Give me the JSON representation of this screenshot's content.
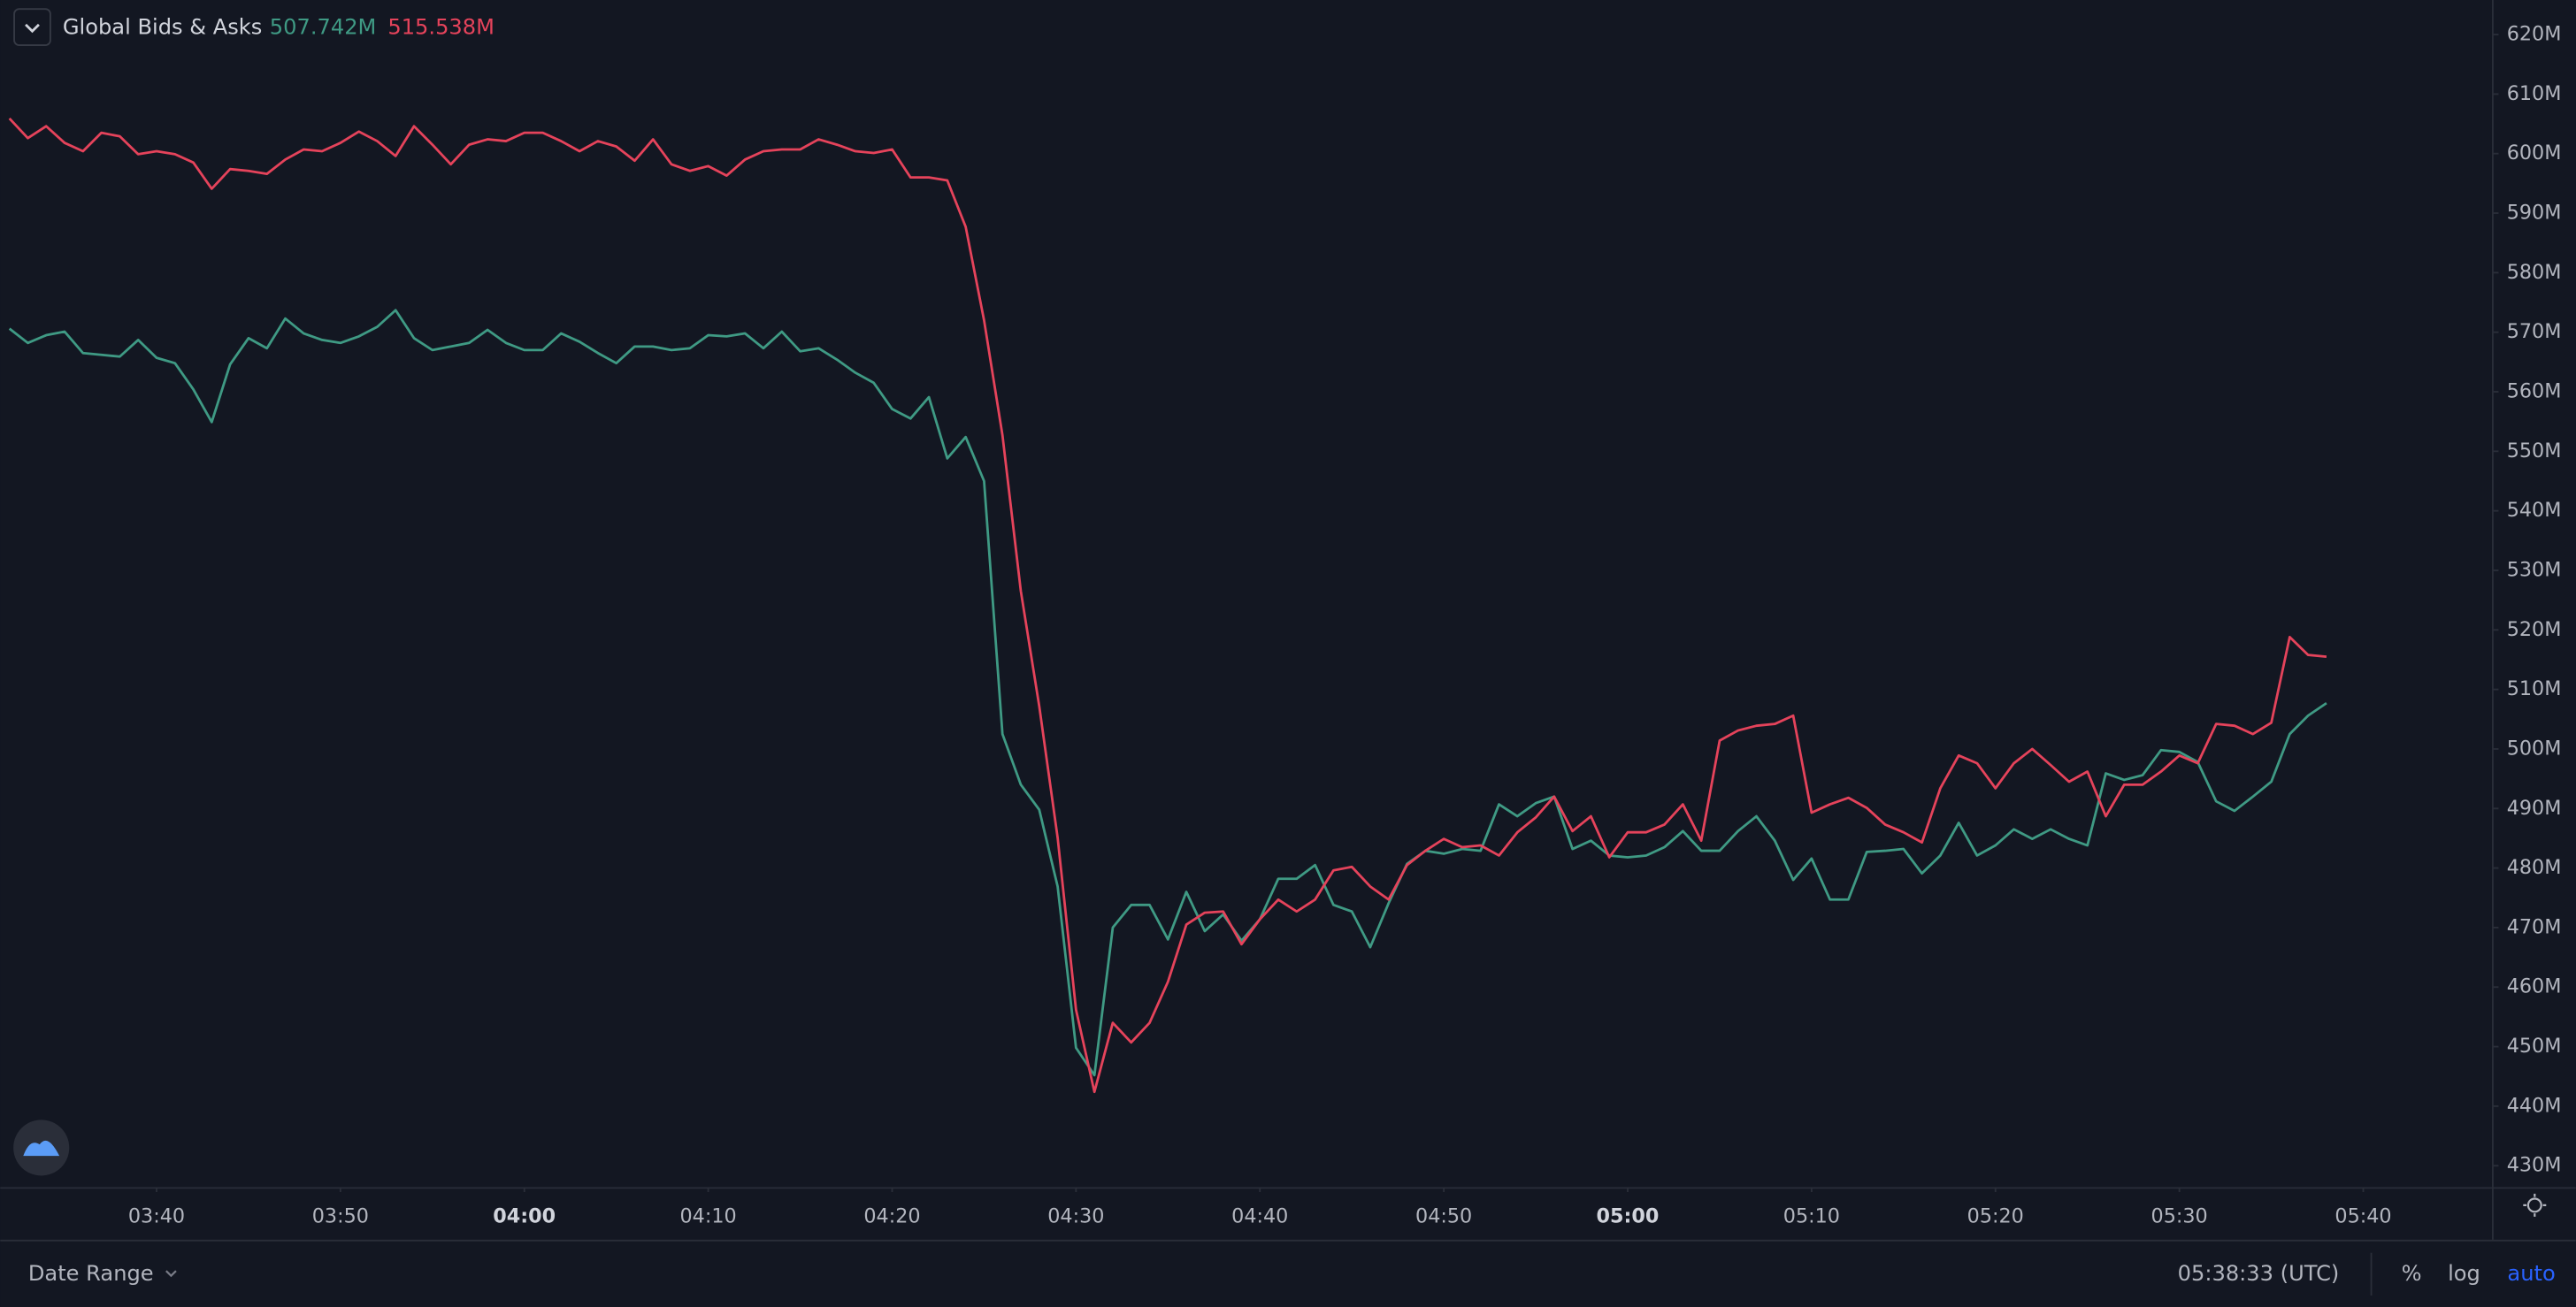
{
  "chart_data": {
    "type": "line",
    "title": "Global Bids & Asks",
    "series": [
      {
        "name": "Bids",
        "color": "#3f9a84",
        "value_label": "507.742M",
        "values": [
          570.6,
          568.2,
          569.5,
          570.1,
          566.5,
          566.2,
          565.9,
          568.7,
          565.7,
          564.8,
          560.4,
          554.9,
          564.6,
          569.0,
          567.3,
          572.3,
          569.8,
          568.7,
          568.2,
          569.3,
          570.9,
          573.7,
          569.0,
          567.0,
          567.6,
          568.2,
          570.4,
          568.2,
          567.0,
          567.0,
          569.8,
          568.4,
          566.5,
          564.8,
          567.6,
          567.6,
          567.0,
          567.3,
          569.5,
          569.3,
          569.8,
          567.3,
          570.1,
          566.8,
          567.3,
          565.4,
          563.2,
          561.5,
          557.1,
          555.5,
          559.1,
          548.8,
          552.4,
          545.0,
          502.5,
          494.0,
          489.8,
          476.9,
          449.8,
          445.2,
          470.0,
          473.8,
          473.8,
          468.0,
          476.0,
          469.4,
          472.2,
          467.8,
          471.4,
          478.2,
          478.2,
          480.5,
          473.8,
          472.7,
          466.7,
          474.1,
          480.7,
          482.9,
          482.4,
          483.2,
          482.9,
          490.7,
          488.7,
          490.9,
          492.0,
          483.2,
          484.6,
          482.1,
          481.8,
          482.1,
          483.5,
          486.2,
          482.9,
          482.9,
          486.2,
          488.7,
          484.6,
          478.0,
          481.6,
          474.7,
          474.7,
          482.7,
          482.9,
          483.2,
          479.1,
          482.1,
          487.6,
          482.1,
          483.8,
          486.5,
          484.9,
          486.5,
          484.9,
          483.8,
          495.9,
          494.8,
          495.6,
          499.8,
          499.5,
          497.8,
          491.2,
          489.6,
          492.0,
          494.5,
          502.5,
          505.6,
          507.7
        ]
      },
      {
        "name": "Asks",
        "color": "#e5435b",
        "value_label": "515.538M",
        "values": [
          605.9,
          602.6,
          604.6,
          601.8,
          600.4,
          603.5,
          602.9,
          599.9,
          600.4,
          599.9,
          598.5,
          594.1,
          597.4,
          597.1,
          596.6,
          599.0,
          600.7,
          600.4,
          601.8,
          603.7,
          602.1,
          599.6,
          604.6,
          601.5,
          598.2,
          601.5,
          602.4,
          602.1,
          603.5,
          603.5,
          602.1,
          600.4,
          602.1,
          601.2,
          598.8,
          602.4,
          598.2,
          597.1,
          597.9,
          596.3,
          599.0,
          600.4,
          600.7,
          600.7,
          602.4,
          601.5,
          600.4,
          600.1,
          600.7,
          596.0,
          596.0,
          595.5,
          587.7,
          572.0,
          552.7,
          526.5,
          507.2,
          485.1,
          456.2,
          442.4,
          454.0,
          450.7,
          454.0,
          460.9,
          470.5,
          472.5,
          472.7,
          467.2,
          471.4,
          474.7,
          472.7,
          474.7,
          479.6,
          480.2,
          476.9,
          474.7,
          480.5,
          482.9,
          484.9,
          483.5,
          483.8,
          482.1,
          486.0,
          488.5,
          492.0,
          486.2,
          488.7,
          481.8,
          486.0,
          486.0,
          487.3,
          490.7,
          484.6,
          501.4,
          503.1,
          503.9,
          504.2,
          505.6,
          489.3,
          490.7,
          491.8,
          490.1,
          487.3,
          486.0,
          484.3,
          493.4,
          498.9,
          497.6,
          493.4,
          497.6,
          500.0,
          497.3,
          494.5,
          496.2,
          488.7,
          494.0,
          494.0,
          496.2,
          498.9,
          497.6,
          504.2,
          503.9,
          502.5,
          504.4,
          518.8,
          515.8,
          515.5
        ]
      }
    ],
    "x": [
      "03:32",
      "03:33",
      "03:34",
      "03:35",
      "03:36",
      "03:37",
      "03:38",
      "03:39",
      "03:40",
      "03:41",
      "03:42",
      "03:43",
      "03:44",
      "03:45",
      "03:46",
      "03:47",
      "03:48",
      "03:49",
      "03:50",
      "03:51",
      "03:52",
      "03:53",
      "03:54",
      "03:55",
      "03:56",
      "03:57",
      "03:58",
      "03:59",
      "04:00",
      "04:01",
      "04:02",
      "04:03",
      "04:04",
      "04:05",
      "04:06",
      "04:07",
      "04:08",
      "04:09",
      "04:10",
      "04:11",
      "04:12",
      "04:13",
      "04:14",
      "04:15",
      "04:16",
      "04:17",
      "04:18",
      "04:19",
      "04:20",
      "04:21",
      "04:22",
      "04:23",
      "04:24",
      "04:25",
      "04:26",
      "04:27",
      "04:28",
      "04:29",
      "04:30",
      "04:31",
      "04:32",
      "04:33",
      "04:34",
      "04:35",
      "04:36",
      "04:37",
      "04:38",
      "04:39",
      "04:40",
      "04:41",
      "04:42",
      "04:43",
      "04:44",
      "04:45",
      "04:46",
      "04:47",
      "04:48",
      "04:49",
      "04:50",
      "04:51",
      "04:52",
      "04:53",
      "04:54",
      "04:55",
      "04:56",
      "04:57",
      "04:58",
      "04:59",
      "05:00",
      "05:01",
      "05:02",
      "05:03",
      "05:04",
      "05:05",
      "05:06",
      "05:07",
      "05:08",
      "05:09",
      "05:10",
      "05:11",
      "05:12",
      "05:13",
      "05:14",
      "05:15",
      "05:16",
      "05:17",
      "05:18",
      "05:19",
      "05:20",
      "05:21",
      "05:22",
      "05:23",
      "05:24",
      "05:25",
      "05:26",
      "05:27",
      "05:28",
      "05:29",
      "05:30",
      "05:31",
      "05:32",
      "05:33",
      "05:34",
      "05:35",
      "05:36",
      "05:37",
      "05:38"
    ],
    "xlim": [
      "03:31:30",
      "05:47:00"
    ],
    "xticks": [
      "03:40",
      "03:50",
      "04:00",
      "04:10",
      "04:20",
      "04:30",
      "04:40",
      "04:50",
      "05:00",
      "05:10",
      "05:20",
      "05:30",
      "05:40"
    ],
    "ylim": [
      426.4,
      625.8
    ],
    "yticks": [
      {
        "value": 620,
        "label": "620M"
      },
      {
        "value": 610,
        "label": "610M"
      },
      {
        "value": 600,
        "label": "600M"
      },
      {
        "value": 590,
        "label": "590M"
      },
      {
        "value": 580,
        "label": "580M"
      },
      {
        "value": 570,
        "label": "570M"
      },
      {
        "value": 560,
        "label": "560M"
      },
      {
        "value": 550,
        "label": "550M"
      },
      {
        "value": 540,
        "label": "540M"
      },
      {
        "value": 530,
        "label": "530M"
      },
      {
        "value": 520,
        "label": "520M"
      },
      {
        "value": 510,
        "label": "510M"
      },
      {
        "value": 500,
        "label": "500M"
      },
      {
        "value": 490,
        "label": "490M"
      },
      {
        "value": 480,
        "label": "480M"
      },
      {
        "value": 470,
        "label": "470M"
      },
      {
        "value": 460,
        "label": "460M"
      },
      {
        "value": 450,
        "label": "450M"
      },
      {
        "value": 440,
        "label": "440M"
      },
      {
        "value": 430,
        "label": "430M"
      }
    ],
    "grid": false
  },
  "toolbar": {
    "date_range": "Date Range",
    "clock": "05:38:33 (UTC)",
    "percent": "%",
    "log": "log",
    "auto": "auto"
  }
}
